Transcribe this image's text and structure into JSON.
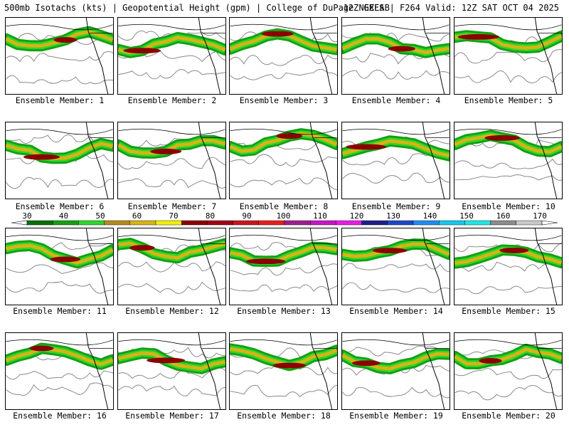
{
  "header": {
    "left_title": "500mb Isotachs (kts) | Geopotential Height (gpm) | College of DuPage NEXLAB",
    "right_title": "12Z GEFS | F264 Valid: 12Z SAT OCT 04 2025"
  },
  "colorbar": {
    "ticks": [
      "30",
      "40",
      "50",
      "60",
      "70",
      "80",
      "90",
      "100",
      "110",
      "120",
      "130",
      "140",
      "150",
      "160",
      "170"
    ],
    "colors": [
      "#0a6e0a",
      "#14a014",
      "#2cd62c",
      "#b48c1e",
      "#d6b414",
      "#f0f000",
      "#8b0000",
      "#a00014",
      "#c8141e",
      "#e61e1e",
      "#a01e8c",
      "#c814c8",
      "#e61ee6",
      "#1e1e8c",
      "#1e46c8",
      "#1e8cf0",
      "#14c8f0",
      "#1ee6e6",
      "#8c8c8c",
      "#c8c8c8"
    ]
  },
  "panels": [
    {
      "label": "Ensemble Member: 1"
    },
    {
      "label": "Ensemble Member: 2"
    },
    {
      "label": "Ensemble Member: 3"
    },
    {
      "label": "Ensemble Member: 4"
    },
    {
      "label": "Ensemble Member: 5"
    },
    {
      "label": "Ensemble Member: 6"
    },
    {
      "label": "Ensemble Member: 7"
    },
    {
      "label": "Ensemble Member: 8"
    },
    {
      "label": "Ensemble Member: 9"
    },
    {
      "label": "Ensemble Member: 10"
    },
    {
      "label": "Ensemble Member: 11"
    },
    {
      "label": "Ensemble Member: 12"
    },
    {
      "label": "Ensemble Member: 13"
    },
    {
      "label": "Ensemble Member: 14"
    },
    {
      "label": "Ensemble Member: 15"
    },
    {
      "label": "Ensemble Member: 16"
    },
    {
      "label": "Ensemble Member: 17"
    },
    {
      "label": "Ensemble Member: 18"
    },
    {
      "label": "Ensemble Member: 19"
    },
    {
      "label": "Ensemble Member: 20"
    }
  ]
}
